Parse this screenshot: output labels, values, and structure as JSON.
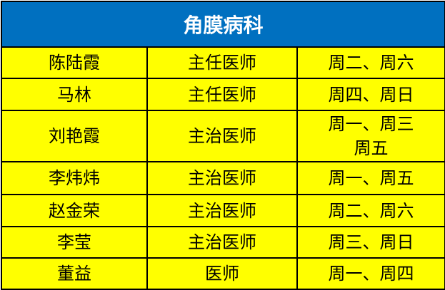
{
  "title": "角膜病科",
  "colors": {
    "header_bg": "#0070C0",
    "row_bg": "#FFFF00"
  },
  "rows": [
    {
      "name": "陈陆霞",
      "title": "主任医师",
      "schedule": [
        "周二、周六"
      ]
    },
    {
      "name": "马林",
      "title": "主任医师",
      "schedule": [
        "周四、周日"
      ]
    },
    {
      "name": "刘艳霞",
      "title": "主治医师",
      "schedule": [
        "周一、周三",
        "周五"
      ]
    },
    {
      "name": "李炜炜",
      "title": "主治医师",
      "schedule": [
        "周一、周五"
      ]
    },
    {
      "name": "赵金荣",
      "title": "主治医师",
      "schedule": [
        "周二、周六"
      ]
    },
    {
      "name": "李莹",
      "title": "主治医师",
      "schedule": [
        "周三、周日"
      ]
    },
    {
      "name": "董益",
      "title": "医师",
      "schedule": [
        "周一、周四"
      ]
    }
  ]
}
